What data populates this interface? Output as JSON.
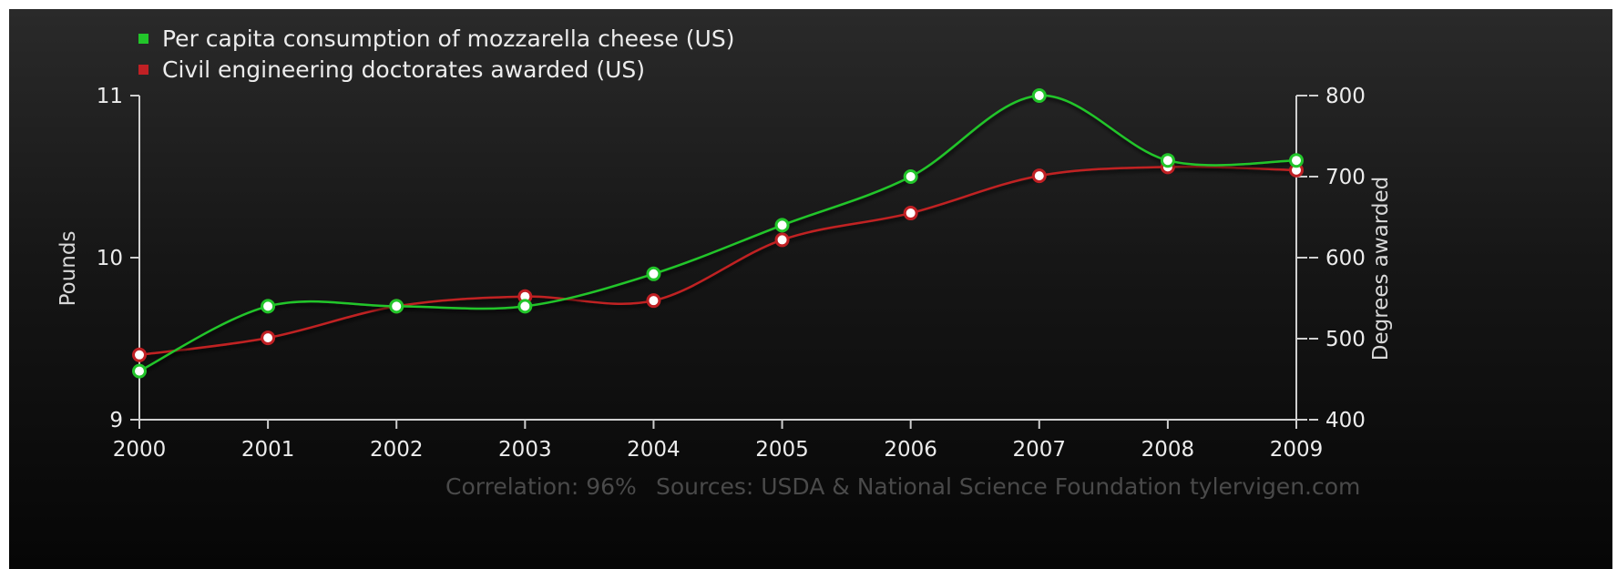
{
  "chart_data": {
    "type": "line",
    "categories": [
      "2000",
      "2001",
      "2002",
      "2003",
      "2004",
      "2005",
      "2006",
      "2007",
      "2008",
      "2009"
    ],
    "series": [
      {
        "name": "Per capita consumption of mozzarella cheese (US)",
        "axis": "left",
        "color": "#22c52a",
        "values": [
          9.3,
          9.7,
          9.7,
          9.7,
          9.9,
          10.2,
          10.5,
          11.0,
          10.6,
          10.6
        ]
      },
      {
        "name": "Civil engineering doctorates awarded (US)",
        "axis": "right",
        "color": "#c02024",
        "values": [
          480,
          501,
          540,
          552,
          547,
          622,
          655,
          701,
          712,
          708
        ]
      }
    ],
    "ylabel_left": "Pounds",
    "ylabel_right": "Degrees awarded",
    "ylim_left": [
      9,
      11
    ],
    "ylim_right": [
      400,
      800
    ],
    "yticks_left": [
      "9",
      "10",
      "11"
    ],
    "yticks_right": [
      "400",
      "500",
      "600",
      "700",
      "800"
    ],
    "legend_position": "top-left",
    "footer": {
      "correlation": "Correlation: 96%",
      "sources": "Sources: USDA & National Science Foundation",
      "site": "tylervigen.com"
    }
  }
}
